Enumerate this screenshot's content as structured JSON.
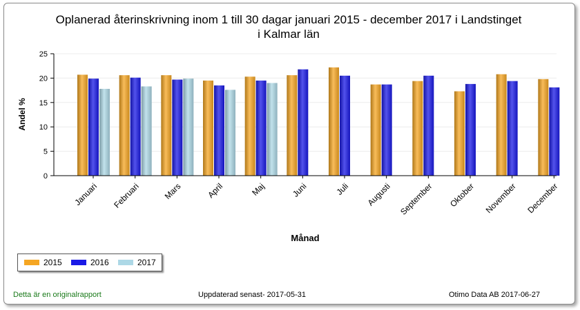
{
  "title_lines": [
    "Oplanerad återinskrivning inom 1 till 30 dagar januari 2015 - december 2017 i Landstinget",
    "i Kalmar län"
  ],
  "chart_data": {
    "type": "bar",
    "title": "Oplanerad återinskrivning inom 1 till 30 dagar januari 2015 - december 2017 i Landstinget i Kalmar län",
    "xlabel": "Månad",
    "ylabel": "Andel %",
    "ylim": [
      0,
      25
    ],
    "yticks": [
      0,
      5,
      10,
      15,
      20,
      25
    ],
    "grid": true,
    "legend_position": "bottom-left",
    "categories": [
      "Januari",
      "Februari",
      "Mars",
      "April",
      "Maj",
      "Juni",
      "Juli",
      "Augusti",
      "September",
      "Oktober",
      "November",
      "December"
    ],
    "series": [
      {
        "name": "2015",
        "color": "#f5a623",
        "values": [
          20.7,
          20.6,
          20.6,
          19.5,
          20.3,
          20.6,
          22.2,
          18.7,
          19.4,
          17.3,
          20.8,
          19.8
        ]
      },
      {
        "name": "2016",
        "color": "#1a1ae6",
        "values": [
          19.9,
          20.1,
          19.7,
          18.5,
          19.5,
          21.8,
          20.5,
          18.7,
          20.5,
          18.8,
          19.4,
          18.1
        ]
      },
      {
        "name": "2017",
        "color": "#add8e6",
        "values": [
          17.8,
          18.3,
          19.9,
          17.6,
          19.0,
          null,
          null,
          null,
          null,
          null,
          null,
          null
        ]
      }
    ]
  },
  "footer": {
    "left": "Detta är en originalrapport",
    "middle": "Uppdaterad senast- 2017-05-31",
    "right": "Otimo Data AB 2017-06-27"
  }
}
